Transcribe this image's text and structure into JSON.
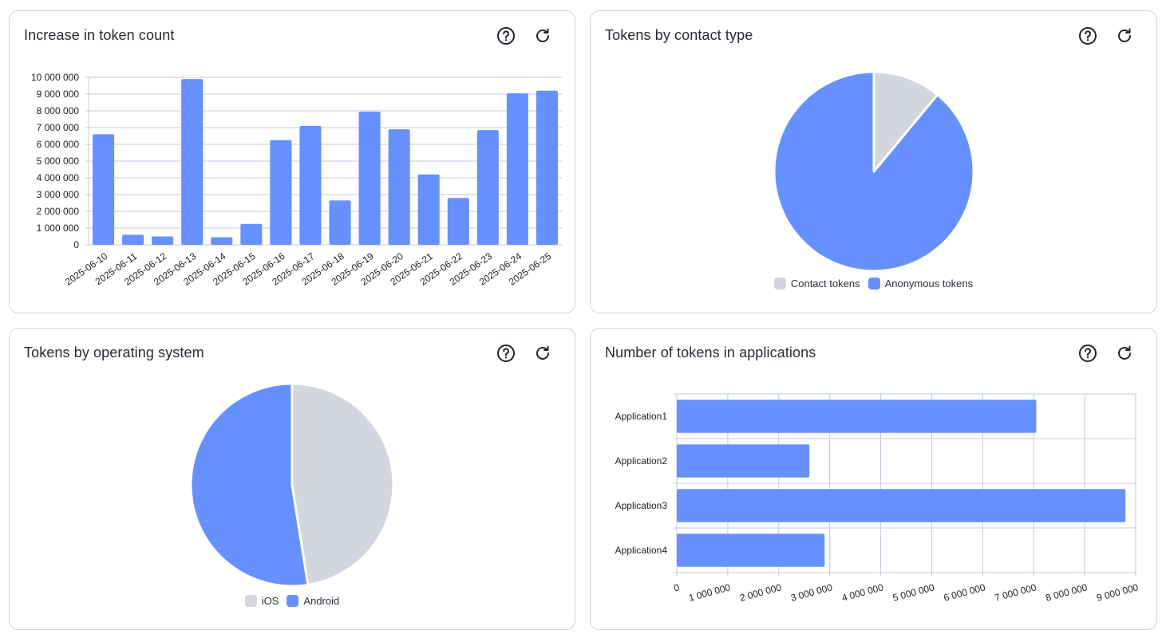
{
  "colors": {
    "blue": "#6690fd",
    "gray": "#d3d6df",
    "grid": "#c4c8e0",
    "axis": "#c4c8e0"
  },
  "icons": {
    "help": "help-circle-icon",
    "refresh": "refresh-icon"
  },
  "cards": {
    "token_increase": {
      "title": "Increase in token count"
    },
    "contact_type": {
      "title": "Tokens by contact type"
    },
    "os": {
      "title": "Tokens by operating system"
    },
    "applications": {
      "title": "Number of tokens in applications"
    }
  },
  "chart_data": [
    {
      "id": "token_increase",
      "type": "bar",
      "title": "Increase in token count",
      "xlabel": "",
      "ylabel": "",
      "ylim": [
        0,
        10000000
      ],
      "yticks": [
        0,
        1000000,
        2000000,
        3000000,
        4000000,
        5000000,
        6000000,
        7000000,
        8000000,
        9000000,
        10000000
      ],
      "ytick_labels": [
        "0",
        "1 000 000",
        "2 000 000",
        "3 000 000",
        "4 000 000",
        "5 000 000",
        "6 000 000",
        "7 000 000",
        "8 000 000",
        "9 000 000",
        "10 000 000"
      ],
      "categories": [
        "2025-06-10",
        "2025-06-11",
        "2025-06-12",
        "2025-06-13",
        "2025-06-14",
        "2025-06-15",
        "2025-06-16",
        "2025-06-17",
        "2025-06-18",
        "2025-06-19",
        "2025-06-20",
        "2025-06-21",
        "2025-06-22",
        "2025-06-23",
        "2025-06-24",
        "2025-06-25"
      ],
      "values": [
        6600000,
        600000,
        500000,
        9900000,
        450000,
        1250000,
        6250000,
        7100000,
        2650000,
        7950000,
        6900000,
        4200000,
        2800000,
        6850000,
        9050000,
        9200000
      ],
      "grid": true
    },
    {
      "id": "contact_type",
      "type": "pie",
      "title": "Tokens by contact type",
      "labels": [
        "Contact tokens",
        "Anonymous tokens"
      ],
      "values": [
        11,
        89
      ],
      "legend": "bottom"
    },
    {
      "id": "os",
      "type": "pie",
      "title": "Tokens by operating system",
      "labels": [
        "iOS",
        "Android"
      ],
      "values": [
        47.5,
        52.5
      ],
      "legend": "bottom"
    },
    {
      "id": "applications",
      "type": "bar",
      "orientation": "horizontal",
      "title": "Number of tokens in applications",
      "categories": [
        "Application1",
        "Application2",
        "Application3",
        "Application4"
      ],
      "values": [
        7050000,
        2600000,
        8800000,
        2900000
      ],
      "xlim": [
        0,
        9000000
      ],
      "xticks": [
        0,
        1000000,
        2000000,
        3000000,
        4000000,
        5000000,
        6000000,
        7000000,
        8000000,
        9000000
      ],
      "xtick_labels": [
        "0",
        "1 000 000",
        "2 000 000",
        "3 000 000",
        "4 000 000",
        "5 000 000",
        "6 000 000",
        "7 000 000",
        "8 000 000",
        "9 000 000"
      ],
      "grid": true
    }
  ]
}
